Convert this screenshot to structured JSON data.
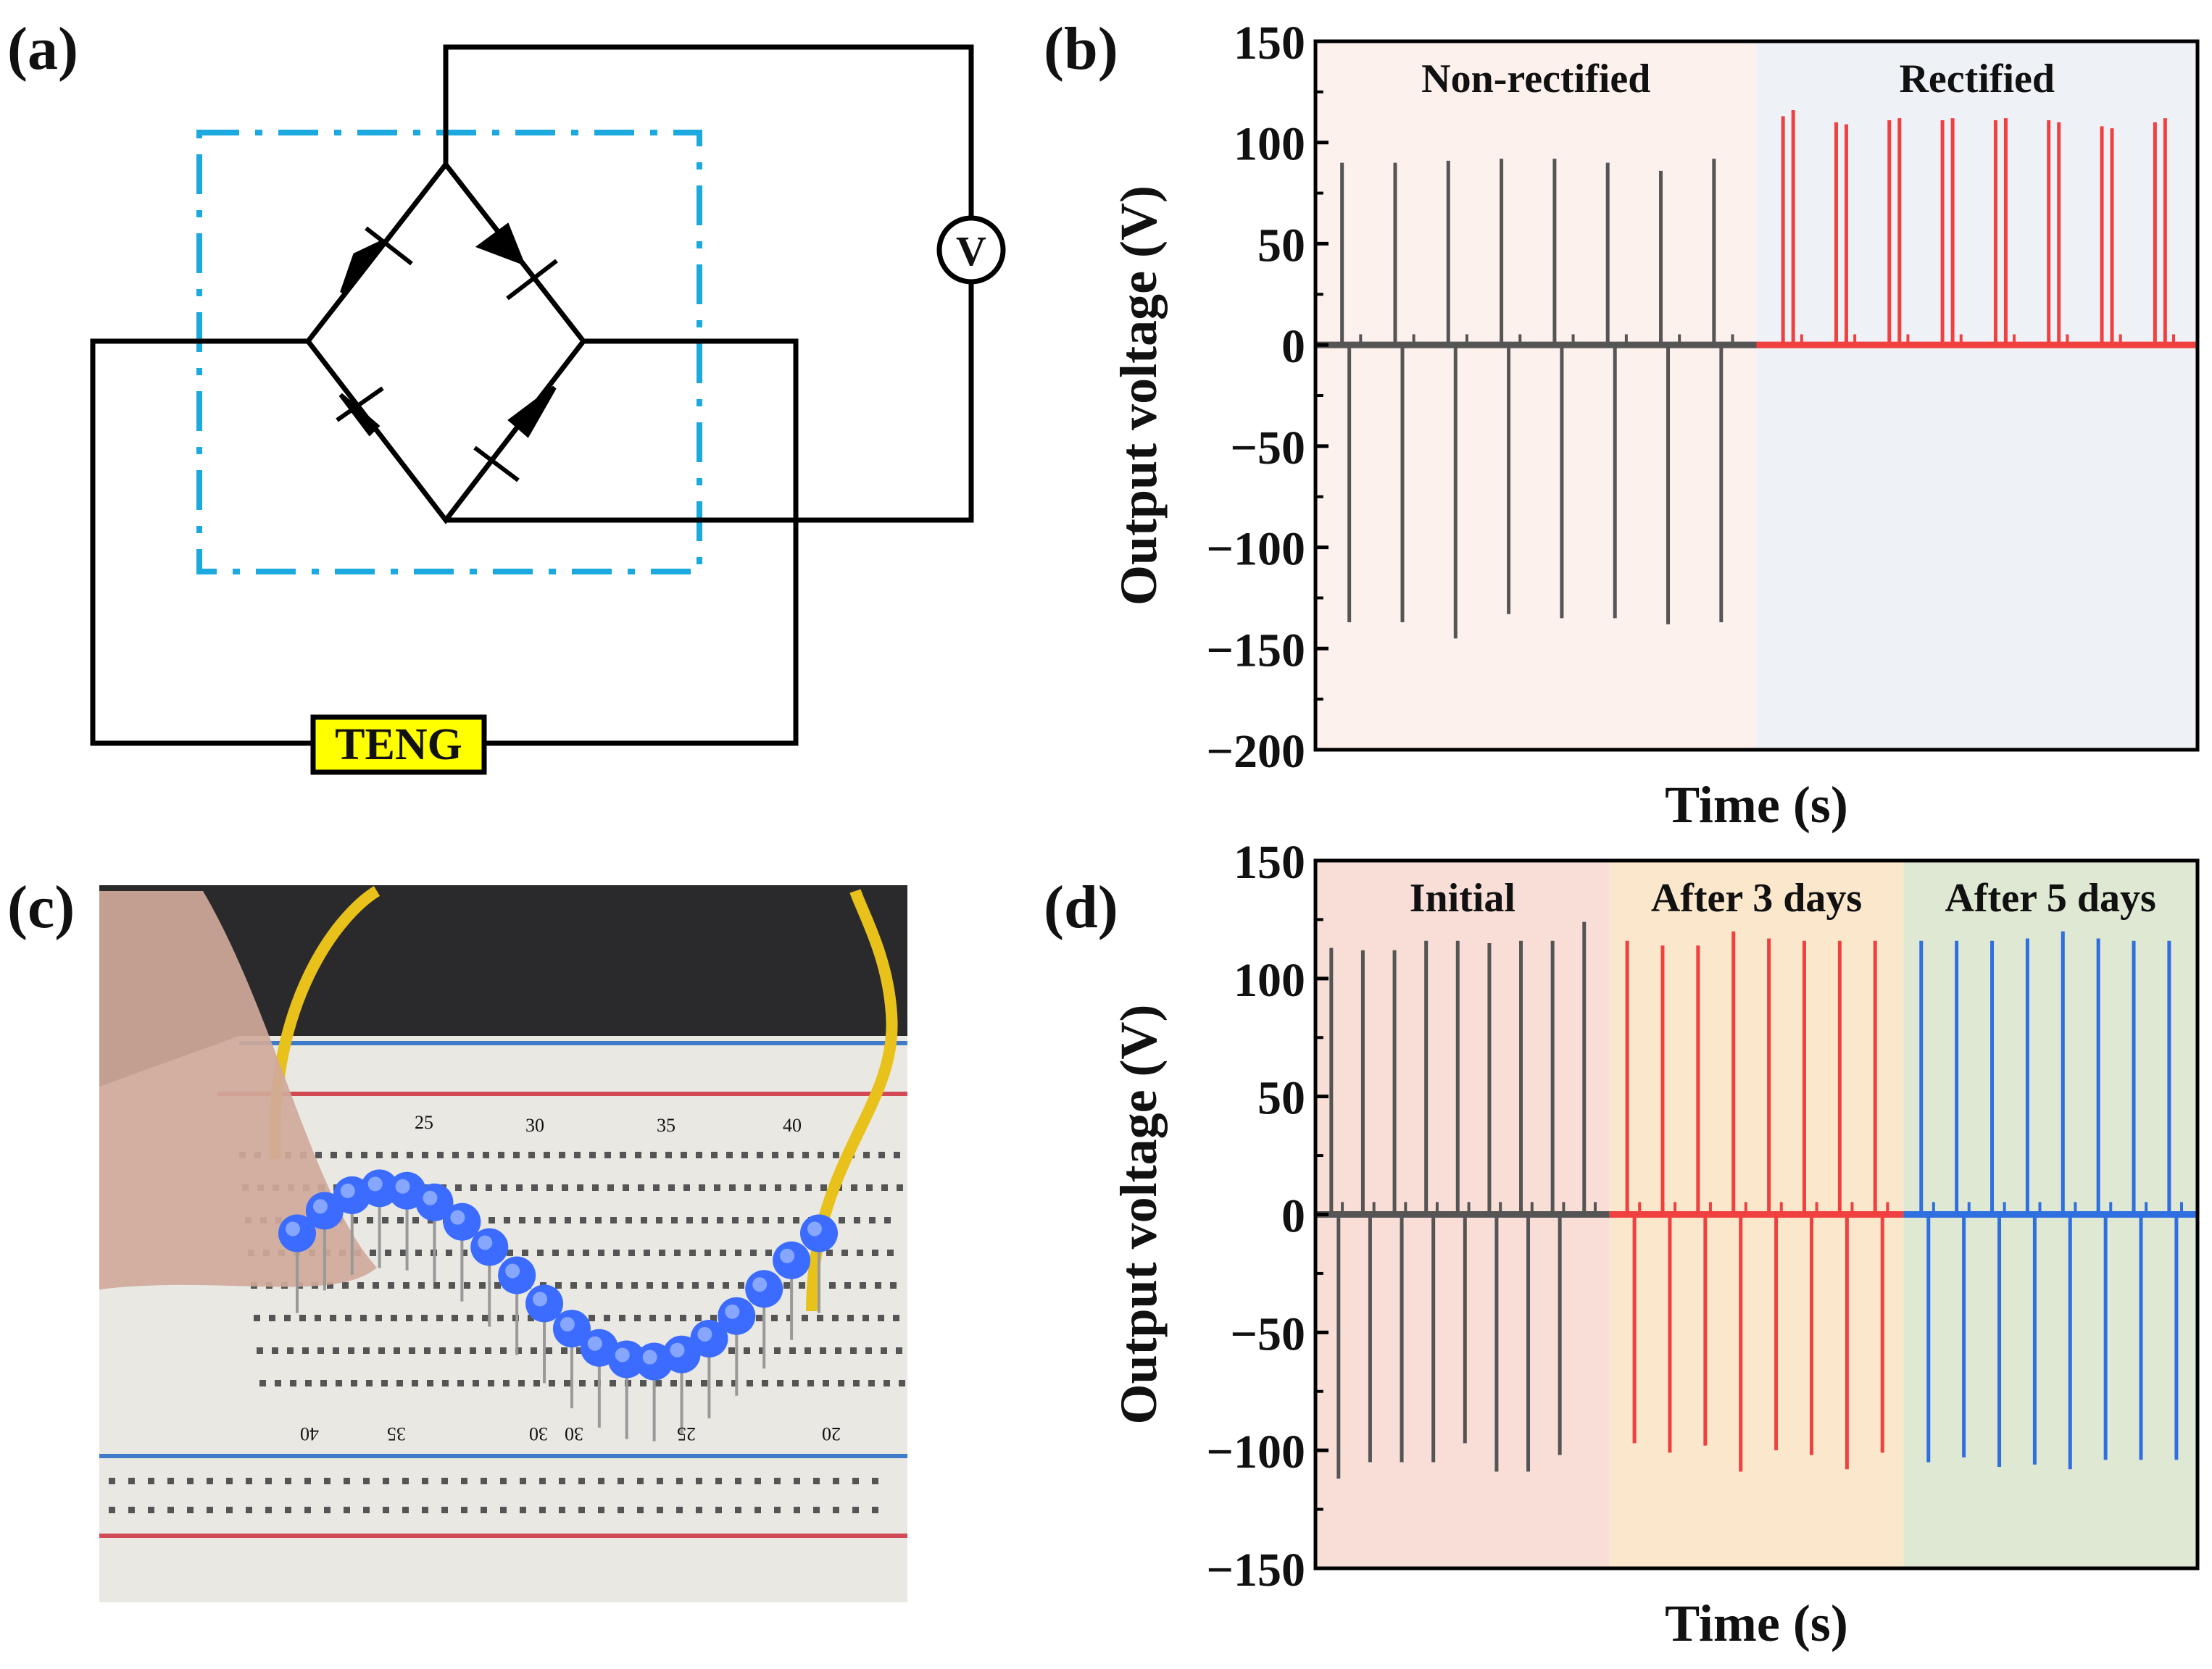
{
  "panels": {
    "a": {
      "label": "(a)"
    },
    "b": {
      "label": "(b)"
    },
    "c": {
      "label": "(c)"
    },
    "d": {
      "label": "(d)"
    }
  },
  "circuit": {
    "source_label": "TENG",
    "meter_label": "V",
    "colors": {
      "wire": "#000000",
      "bridge_box": "#1BA9E0",
      "source_fill": "#FFFF00"
    }
  },
  "photo": {
    "breadboard_numbers_top": [
      "25",
      "30",
      "35",
      "40"
    ],
    "breadboard_numbers_bottom": [
      "40",
      "35",
      "30",
      "30",
      "25",
      "20"
    ],
    "led_count": 20,
    "colors": {
      "led": "#3b6cff",
      "wire": "#e8c21a",
      "board": "#efeeea"
    }
  },
  "chart_data": [
    {
      "type": "line",
      "panel": "b",
      "title": "",
      "xlabel": "Time (s)",
      "ylabel": "Output voltage (V)",
      "ylim": [
        -200,
        150
      ],
      "yticks": [
        -200,
        -150,
        -100,
        -50,
        0,
        50,
        100,
        150
      ],
      "ytick_labels": [
        "−200",
        "−150",
        "−100",
        "−50",
        "0",
        "50",
        "100",
        "150"
      ],
      "regions": [
        {
          "name": "Non-rectified",
          "color": "#fdf1ee"
        },
        {
          "name": "Rectified",
          "color": "#eef2f7"
        }
      ],
      "series": [
        {
          "name": "Non-rectified",
          "color": "#555555",
          "peaks": [
            90,
            90,
            91,
            92,
            92,
            90,
            86,
            92
          ],
          "troughs": [
            -137,
            -137,
            -145,
            -133,
            -135,
            -135,
            -138,
            -137
          ]
        },
        {
          "name": "Rectified",
          "color": "#f04040",
          "peaks": [
            [
              113,
              116
            ],
            [
              110,
              109
            ],
            [
              111,
              112
            ],
            [
              111,
              112
            ],
            [
              111,
              112
            ],
            [
              111,
              110
            ],
            [
              108,
              107
            ],
            [
              110,
              112
            ]
          ]
        }
      ]
    },
    {
      "type": "line",
      "panel": "d",
      "title": "",
      "xlabel": "Time (s)",
      "ylabel": "Output voltage (V)",
      "ylim": [
        -150,
        150
      ],
      "yticks": [
        -150,
        -100,
        -50,
        0,
        50,
        100,
        150
      ],
      "ytick_labels": [
        "−150",
        "−100",
        "−50",
        "0",
        "50",
        "100",
        "150"
      ],
      "regions": [
        {
          "name": "Initial",
          "color": "#f8ded6"
        },
        {
          "name": "After 3 days",
          "color": "#fbe8cc"
        },
        {
          "name": "After 5 days",
          "color": "#dfe8d2"
        }
      ],
      "series": [
        {
          "name": "Initial",
          "color": "#555555",
          "peaks": [
            113,
            112,
            112,
            116,
            116,
            115,
            116,
            116,
            124
          ],
          "troughs": [
            -112,
            -105,
            -105,
            -105,
            -97,
            -109,
            -109,
            -102
          ]
        },
        {
          "name": "After 3 days",
          "color": "#f04040",
          "peaks": [
            116,
            114,
            114,
            120,
            117,
            116,
            116,
            116
          ],
          "troughs": [
            -97,
            -101,
            -98,
            -109,
            -100,
            -102,
            -108,
            -101
          ]
        },
        {
          "name": "After 5 days",
          "color": "#2f6fe0",
          "peaks": [
            116,
            116,
            116,
            117,
            120,
            117,
            116,
            116
          ],
          "troughs": [
            -105,
            -103,
            -107,
            -106,
            -108,
            -104,
            -104,
            -104
          ]
        }
      ]
    }
  ]
}
